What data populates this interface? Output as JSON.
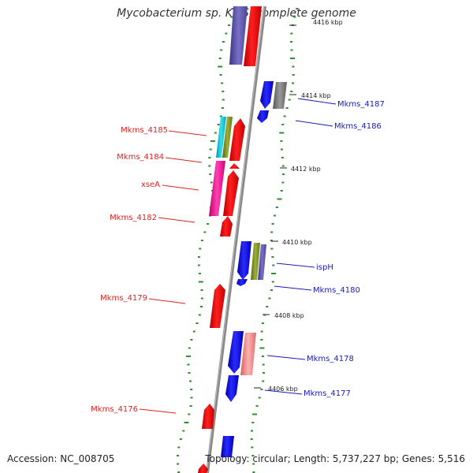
{
  "title": "Mycobacterium sp. KMS, complete genome",
  "footer": {
    "accession": "Accession: NC_008705",
    "summary": "Topology: circular; Length: 5,737,227 bp; Genes: 5,516"
  },
  "ticks": [
    {
      "label": "4416 kbp"
    },
    {
      "label": "4414 kbp"
    },
    {
      "label": "4412 kbp"
    },
    {
      "label": "4410 kbp"
    },
    {
      "label": "4408 kbp"
    },
    {
      "label": "4406 kbp"
    }
  ],
  "genes_forward": [
    {
      "label": "Mkms_4185",
      "color": "#dd2222"
    },
    {
      "label": "Mkms_4184",
      "color": "#dd2222"
    },
    {
      "label": "xseA",
      "color": "#dd2222"
    },
    {
      "label": "Mkms_4182",
      "color": "#dd2222"
    },
    {
      "label": "Mkms_4179",
      "color": "#dd2222"
    },
    {
      "label": "Mkms_4176",
      "color": "#dd2222"
    }
  ],
  "genes_reverse": [
    {
      "label": "Mkms_4187",
      "color": "#1a1ab8"
    },
    {
      "label": "Mkms_4186",
      "color": "#1a1ab8"
    },
    {
      "label": "ispH",
      "color": "#1a1ab8"
    },
    {
      "label": "Mkms_4180",
      "color": "#1a1ab8"
    },
    {
      "label": "Mkms_4178",
      "color": "#1a1ab8"
    },
    {
      "label": "Mkms_4177",
      "color": "#1a1ab8"
    }
  ]
}
